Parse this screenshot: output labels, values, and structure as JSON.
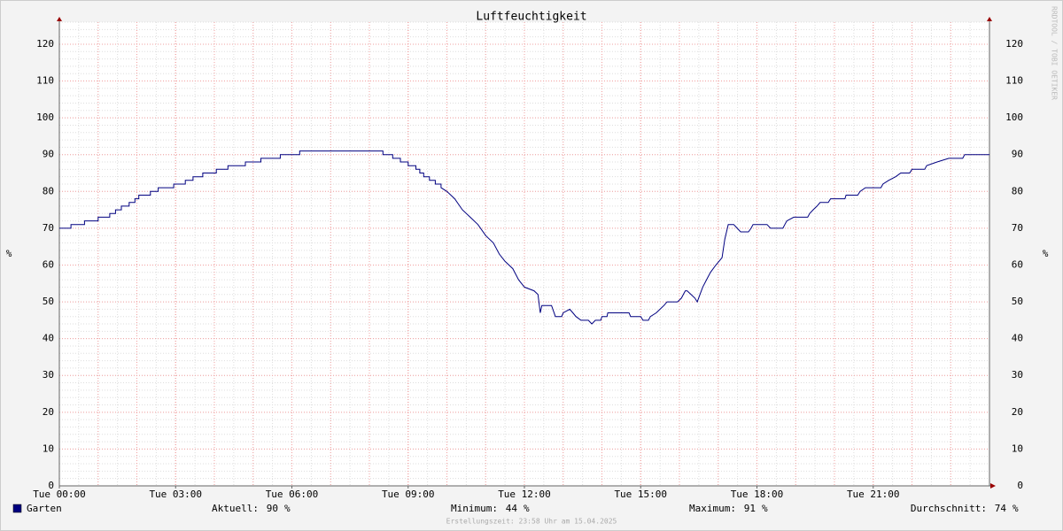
{
  "chart_data": {
    "type": "line",
    "title": "Luftfeuchtigkeit",
    "ylabel": "%",
    "y2label": "%",
    "watermark": "RRDTOOL / TOBI OETIKER",
    "xlim": [
      0,
      24
    ],
    "xticks": [
      {
        "value": 0,
        "label": "Tue 00:00"
      },
      {
        "value": 3,
        "label": "Tue 03:00"
      },
      {
        "value": 6,
        "label": "Tue 06:00"
      },
      {
        "value": 9,
        "label": "Tue 09:00"
      },
      {
        "value": 12,
        "label": "Tue 12:00"
      },
      {
        "value": 15,
        "label": "Tue 15:00"
      },
      {
        "value": 18,
        "label": "Tue 18:00"
      },
      {
        "value": 21,
        "label": "Tue 21:00"
      }
    ],
    "ylim": [
      0,
      126
    ],
    "yticks": [
      0,
      10,
      20,
      30,
      40,
      50,
      60,
      70,
      80,
      90,
      100,
      110,
      120
    ],
    "grid": true,
    "series": [
      {
        "name": "Garten",
        "color": "#000080",
        "x": [
          0,
          0.3,
          0.3,
          0.65,
          0.65,
          1.0,
          1.0,
          1.3,
          1.3,
          1.45,
          1.45,
          1.6,
          1.6,
          1.8,
          1.8,
          1.95,
          1.95,
          2.05,
          2.05,
          2.35,
          2.35,
          2.55,
          2.55,
          2.95,
          2.95,
          3.25,
          3.25,
          3.45,
          3.45,
          3.7,
          3.7,
          4.05,
          4.05,
          4.35,
          4.35,
          4.8,
          4.8,
          5.2,
          5.2,
          5.7,
          5.7,
          6.2,
          6.2,
          8.35,
          8.35,
          8.6,
          8.6,
          8.8,
          8.8,
          9.0,
          9.0,
          9.2,
          9.2,
          9.3,
          9.3,
          9.4,
          9.4,
          9.55,
          9.55,
          9.7,
          9.7,
          9.85,
          9.85,
          10.0,
          10.2,
          10.4,
          10.6,
          10.8,
          11.0,
          11.2,
          11.35,
          11.5,
          11.7,
          11.85,
          12.0,
          12.25,
          12.35,
          12.41,
          12.45,
          12.7,
          12.8,
          12.96,
          13.0,
          13.17,
          13.25,
          13.33,
          13.46,
          13.65,
          13.74,
          13.83,
          13.97,
          14.0,
          14.13,
          14.15,
          14.7,
          14.74,
          15.0,
          15.06,
          15.2,
          15.25,
          15.4,
          15.5,
          15.6,
          15.68,
          15.95,
          16.05,
          16.15,
          16.2,
          16.3,
          16.4,
          16.46,
          16.53,
          16.6,
          16.7,
          16.8,
          16.94,
          17.1,
          17.17,
          17.26,
          17.4,
          17.49,
          17.58,
          17.78,
          17.85,
          17.9,
          18.26,
          18.35,
          18.67,
          18.72,
          18.77,
          18.95,
          19.31,
          19.36,
          19.45,
          19.55,
          19.63,
          19.84,
          19.9,
          20.27,
          20.3,
          20.6,
          20.66,
          20.8,
          21.2,
          21.25,
          21.4,
          21.58,
          21.71,
          21.94,
          22.0,
          22.33,
          22.38,
          22.65,
          22.95,
          23.31,
          23.36,
          24
        ],
        "values": [
          70,
          70,
          71,
          71,
          72,
          72,
          73,
          73,
          74,
          74,
          75,
          75,
          76,
          76,
          77,
          77,
          78,
          78,
          79,
          79,
          80,
          80,
          81,
          81,
          82,
          82,
          83,
          83,
          84,
          84,
          85,
          85,
          86,
          86,
          87,
          87,
          88,
          88,
          89,
          89,
          90,
          90,
          91,
          91,
          90,
          90,
          89,
          89,
          88,
          88,
          87,
          87,
          86,
          86,
          85,
          85,
          84,
          84,
          83,
          83,
          82,
          82,
          81,
          80,
          78,
          75,
          73,
          71,
          68,
          66,
          63,
          61,
          59,
          56,
          54,
          53,
          52,
          47,
          49,
          49,
          46,
          46,
          47,
          48,
          47,
          46,
          45,
          45,
          44,
          45,
          45,
          46,
          46,
          47,
          47,
          46,
          46,
          45,
          45,
          46,
          47,
          48,
          49,
          50,
          50,
          51,
          53,
          53,
          52,
          51,
          50,
          52,
          54,
          56,
          58,
          60,
          62,
          67,
          71,
          71,
          70,
          69,
          69,
          70,
          71,
          71,
          70,
          70,
          71,
          72,
          73,
          73,
          74,
          75,
          76,
          77,
          77,
          78,
          78,
          79,
          79,
          80,
          81,
          81,
          82,
          83,
          84,
          85,
          85,
          86,
          86,
          87,
          88,
          89,
          89,
          90,
          90
        ]
      }
    ],
    "stats": [
      {
        "label": "Aktuell:",
        "value": 90,
        "unit": "%"
      },
      {
        "label": "Minimum:",
        "value": 44,
        "unit": "%"
      },
      {
        "label": "Maximum:",
        "value": 91,
        "unit": "%"
      },
      {
        "label": "Durchschnitt:",
        "value": 74,
        "unit": "%"
      }
    ],
    "footer": "Erstellungszeit: 23:58 Uhr am 15.04.2025"
  }
}
